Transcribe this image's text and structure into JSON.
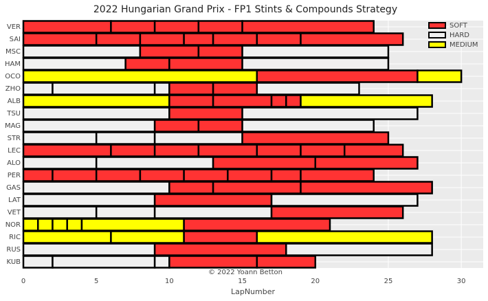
{
  "chart_data": {
    "type": "stint",
    "title": "2022 Hungarian Grand Prix - FP1 Stints & Compounds Strategy",
    "x_label": "LapNumber",
    "annotation": "© 2022 Yoann Betton",
    "xlim": [
      0,
      31.5
    ],
    "xticks": [
      0,
      5,
      10,
      15,
      20,
      25,
      30
    ],
    "grid": true,
    "legend": "upper right",
    "series": [
      {
        "name": "SOFT",
        "color": "#ff3333"
      },
      {
        "name": "HARD",
        "color": "#f0f0f0"
      },
      {
        "name": "MEDIUM",
        "color": "#ffff00"
      }
    ],
    "categories": [
      "VER",
      "SAI",
      "MSC",
      "HAM",
      "OCO",
      "ZHO",
      "ALB",
      "TSU",
      "MAG",
      "STR",
      "LEC",
      "ALO",
      "PER",
      "GAS",
      "LAT",
      "VET",
      "NOR",
      "RIC",
      "RUS",
      "KUB"
    ],
    "stints": [
      [
        {
          "compound": "SOFT",
          "laps": 6
        },
        {
          "compound": "SOFT",
          "laps": 3
        },
        {
          "compound": "SOFT",
          "laps": 3
        },
        {
          "compound": "SOFT",
          "laps": 3
        },
        {
          "compound": "SOFT",
          "laps": 9
        }
      ],
      [
        {
          "compound": "SOFT",
          "laps": 5
        },
        {
          "compound": "SOFT",
          "laps": 3
        },
        {
          "compound": "SOFT",
          "laps": 3
        },
        {
          "compound": "SOFT",
          "laps": 2
        },
        {
          "compound": "SOFT",
          "laps": 3
        },
        {
          "compound": "SOFT",
          "laps": 3
        },
        {
          "compound": "SOFT",
          "laps": 7
        }
      ],
      [
        {
          "compound": "HARD",
          "laps": 8
        },
        {
          "compound": "SOFT",
          "laps": 4
        },
        {
          "compound": "SOFT",
          "laps": 3
        },
        {
          "compound": "HARD",
          "laps": 10
        }
      ],
      [
        {
          "compound": "HARD",
          "laps": 7
        },
        {
          "compound": "SOFT",
          "laps": 3
        },
        {
          "compound": "SOFT",
          "laps": 5
        },
        {
          "compound": "HARD",
          "laps": 10
        }
      ],
      [
        {
          "compound": "MEDIUM",
          "laps": 16
        },
        {
          "compound": "SOFT",
          "laps": 11
        },
        {
          "compound": "MEDIUM",
          "laps": 3
        }
      ],
      [
        {
          "compound": "HARD",
          "laps": 2
        },
        {
          "compound": "HARD",
          "laps": 7
        },
        {
          "compound": "HARD",
          "laps": 1
        },
        {
          "compound": "SOFT",
          "laps": 3
        },
        {
          "compound": "SOFT",
          "laps": 3
        },
        {
          "compound": "HARD",
          "laps": 7
        }
      ],
      [
        {
          "compound": "MEDIUM",
          "laps": 10
        },
        {
          "compound": "SOFT",
          "laps": 3
        },
        {
          "compound": "SOFT",
          "laps": 4
        },
        {
          "compound": "SOFT",
          "laps": 1
        },
        {
          "compound": "SOFT",
          "laps": 1
        },
        {
          "compound": "MEDIUM",
          "laps": 9
        }
      ],
      [
        {
          "compound": "HARD",
          "laps": 10
        },
        {
          "compound": "SOFT",
          "laps": 5
        },
        {
          "compound": "HARD",
          "laps": 12
        }
      ],
      [
        {
          "compound": "HARD",
          "laps": 9
        },
        {
          "compound": "SOFT",
          "laps": 3
        },
        {
          "compound": "SOFT",
          "laps": 3
        },
        {
          "compound": "HARD",
          "laps": 9
        }
      ],
      [
        {
          "compound": "HARD",
          "laps": 5
        },
        {
          "compound": "HARD",
          "laps": 4
        },
        {
          "compound": "HARD",
          "laps": 6
        },
        {
          "compound": "SOFT",
          "laps": 10
        }
      ],
      [
        {
          "compound": "SOFT",
          "laps": 6
        },
        {
          "compound": "SOFT",
          "laps": 3
        },
        {
          "compound": "SOFT",
          "laps": 3
        },
        {
          "compound": "SOFT",
          "laps": 4
        },
        {
          "compound": "SOFT",
          "laps": 3
        },
        {
          "compound": "SOFT",
          "laps": 3
        },
        {
          "compound": "SOFT",
          "laps": 4
        }
      ],
      [
        {
          "compound": "HARD",
          "laps": 5
        },
        {
          "compound": "HARD",
          "laps": 8
        },
        {
          "compound": "SOFT",
          "laps": 7
        },
        {
          "compound": "SOFT",
          "laps": 7
        }
      ],
      [
        {
          "compound": "SOFT",
          "laps": 2
        },
        {
          "compound": "SOFT",
          "laps": 3
        },
        {
          "compound": "SOFT",
          "laps": 3
        },
        {
          "compound": "SOFT",
          "laps": 3
        },
        {
          "compound": "SOFT",
          "laps": 3
        },
        {
          "compound": "SOFT",
          "laps": 3
        },
        {
          "compound": "SOFT",
          "laps": 2
        },
        {
          "compound": "SOFT",
          "laps": 5
        }
      ],
      [
        {
          "compound": "HARD",
          "laps": 10
        },
        {
          "compound": "SOFT",
          "laps": 3
        },
        {
          "compound": "SOFT",
          "laps": 6
        },
        {
          "compound": "SOFT",
          "laps": 9
        }
      ],
      [
        {
          "compound": "HARD",
          "laps": 9
        },
        {
          "compound": "SOFT",
          "laps": 8
        },
        {
          "compound": "HARD",
          "laps": 10
        }
      ],
      [
        {
          "compound": "HARD",
          "laps": 5
        },
        {
          "compound": "HARD",
          "laps": 4
        },
        {
          "compound": "HARD",
          "laps": 8
        },
        {
          "compound": "SOFT",
          "laps": 9
        }
      ],
      [
        {
          "compound": "MEDIUM",
          "laps": 1
        },
        {
          "compound": "MEDIUM",
          "laps": 1
        },
        {
          "compound": "MEDIUM",
          "laps": 1
        },
        {
          "compound": "MEDIUM",
          "laps": 1
        },
        {
          "compound": "MEDIUM",
          "laps": 7
        },
        {
          "compound": "SOFT",
          "laps": 10
        }
      ],
      [
        {
          "compound": "MEDIUM",
          "laps": 6
        },
        {
          "compound": "MEDIUM",
          "laps": 5
        },
        {
          "compound": "SOFT",
          "laps": 5
        },
        {
          "compound": "MEDIUM",
          "laps": 12
        }
      ],
      [
        {
          "compound": "HARD",
          "laps": 9
        },
        {
          "compound": "SOFT",
          "laps": 9
        },
        {
          "compound": "HARD",
          "laps": 10
        }
      ],
      [
        {
          "compound": "HARD",
          "laps": 2
        },
        {
          "compound": "HARD",
          "laps": 7
        },
        {
          "compound": "HARD",
          "laps": 1
        },
        {
          "compound": "SOFT",
          "laps": 6
        },
        {
          "compound": "SOFT",
          "laps": 4
        }
      ]
    ]
  }
}
